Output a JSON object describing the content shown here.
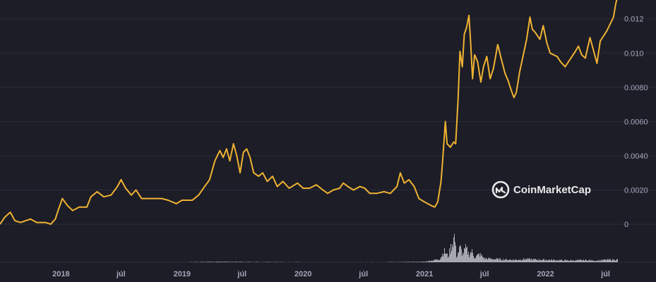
{
  "chart_data": {
    "type": "line",
    "colors": {
      "price_line": "#f0b232",
      "volume": "#e6e8ef",
      "grid": "#2b2d3a",
      "tick_text": "#a1a7bb",
      "background": "#1c1d26"
    },
    "y_ticks": [
      {
        "value": 0,
        "label": "0"
      },
      {
        "value": 0.002,
        "label": "0.0020"
      },
      {
        "value": 0.004,
        "label": "0.0040"
      },
      {
        "value": 0.006,
        "label": "0.0060"
      },
      {
        "value": 0.008,
        "label": "0.0080"
      },
      {
        "value": 0.01,
        "label": "0.010"
      },
      {
        "value": 0.012,
        "label": "0.012"
      }
    ],
    "ylim": [
      0,
      0.0131
    ],
    "xlim": [
      "2017-07-01",
      "2022-08-05"
    ],
    "x_ticks": [
      {
        "date": "2018-01-01",
        "label": "2018"
      },
      {
        "date": "2018-07-01",
        "label": "júl"
      },
      {
        "date": "2019-01-01",
        "label": "2019"
      },
      {
        "date": "2019-07-01",
        "label": "júl"
      },
      {
        "date": "2020-01-01",
        "label": "2020"
      },
      {
        "date": "2020-07-01",
        "label": "júl"
      },
      {
        "date": "2021-01-01",
        "label": "2021"
      },
      {
        "date": "2021-07-01",
        "label": "júl"
      },
      {
        "date": "2022-01-01",
        "label": "2022"
      },
      {
        "date": "2022-07-01",
        "label": "júl"
      }
    ],
    "series": [
      {
        "points": [
          [
            "2017-07-01",
            0.0
          ],
          [
            "2017-07-15",
            0.0004
          ],
          [
            "2017-08-01",
            0.0007
          ],
          [
            "2017-08-15",
            0.0002
          ],
          [
            "2017-09-01",
            0.0001
          ],
          [
            "2017-10-01",
            0.0003
          ],
          [
            "2017-10-20",
            0.0001
          ],
          [
            "2017-11-15",
            0.0001
          ],
          [
            "2017-12-01",
            0.0
          ],
          [
            "2017-12-15",
            0.0003
          ],
          [
            "2017-12-25",
            0.0009
          ],
          [
            "2018-01-05",
            0.0015
          ],
          [
            "2018-01-20",
            0.0011
          ],
          [
            "2018-02-05",
            0.0008
          ],
          [
            "2018-02-25",
            0.001
          ],
          [
            "2018-03-20",
            0.001
          ],
          [
            "2018-04-01",
            0.0016
          ],
          [
            "2018-04-20",
            0.0019
          ],
          [
            "2018-05-10",
            0.0016
          ],
          [
            "2018-06-01",
            0.0017
          ],
          [
            "2018-06-20",
            0.0022
          ],
          [
            "2018-07-01",
            0.0026
          ],
          [
            "2018-07-15",
            0.0021
          ],
          [
            "2018-08-01",
            0.0017
          ],
          [
            "2018-08-15",
            0.002
          ],
          [
            "2018-09-01",
            0.0015
          ],
          [
            "2018-10-01",
            0.0015
          ],
          [
            "2018-11-01",
            0.0015
          ],
          [
            "2018-11-20",
            0.0014
          ],
          [
            "2018-12-15",
            0.0012
          ],
          [
            "2019-01-01",
            0.0014
          ],
          [
            "2019-02-01",
            0.0014
          ],
          [
            "2019-02-20",
            0.0017
          ],
          [
            "2019-03-10",
            0.0022
          ],
          [
            "2019-03-25",
            0.0026
          ],
          [
            "2019-04-10",
            0.0037
          ],
          [
            "2019-04-25",
            0.0043
          ],
          [
            "2019-05-05",
            0.0039
          ],
          [
            "2019-05-15",
            0.0044
          ],
          [
            "2019-05-25",
            0.0037
          ],
          [
            "2019-06-05",
            0.0047
          ],
          [
            "2019-06-15",
            0.004
          ],
          [
            "2019-06-25",
            0.003
          ],
          [
            "2019-07-05",
            0.0042
          ],
          [
            "2019-07-15",
            0.0044
          ],
          [
            "2019-07-25",
            0.0039
          ],
          [
            "2019-08-05",
            0.003
          ],
          [
            "2019-08-20",
            0.0028
          ],
          [
            "2019-09-01",
            0.003
          ],
          [
            "2019-09-15",
            0.0025
          ],
          [
            "2019-10-01",
            0.0028
          ],
          [
            "2019-10-15",
            0.0022
          ],
          [
            "2019-11-01",
            0.0025
          ],
          [
            "2019-11-20",
            0.0021
          ],
          [
            "2019-12-15",
            0.0024
          ],
          [
            "2020-01-01",
            0.0021
          ],
          [
            "2020-01-20",
            0.0021
          ],
          [
            "2020-02-10",
            0.0023
          ],
          [
            "2020-03-01",
            0.002
          ],
          [
            "2020-03-15",
            0.0018
          ],
          [
            "2020-04-01",
            0.002
          ],
          [
            "2020-04-20",
            0.0021
          ],
          [
            "2020-05-01",
            0.0024
          ],
          [
            "2020-05-15",
            0.0022
          ],
          [
            "2020-06-01",
            0.002
          ],
          [
            "2020-06-20",
            0.0022
          ],
          [
            "2020-07-05",
            0.0021
          ],
          [
            "2020-07-20",
            0.0018
          ],
          [
            "2020-08-10",
            0.0018
          ],
          [
            "2020-09-01",
            0.0019
          ],
          [
            "2020-09-20",
            0.0018
          ],
          [
            "2020-10-10",
            0.0022
          ],
          [
            "2020-10-20",
            0.003
          ],
          [
            "2020-11-01",
            0.0024
          ],
          [
            "2020-11-15",
            0.0026
          ],
          [
            "2020-12-01",
            0.0022
          ],
          [
            "2020-12-15",
            0.0015
          ],
          [
            "2021-01-01",
            0.0013
          ],
          [
            "2021-01-20",
            0.0011
          ],
          [
            "2021-02-01",
            0.001
          ],
          [
            "2021-02-10",
            0.0013
          ],
          [
            "2021-02-20",
            0.0025
          ],
          [
            "2021-02-25",
            0.0038
          ],
          [
            "2021-03-05",
            0.006
          ],
          [
            "2021-03-10",
            0.0047
          ],
          [
            "2021-03-20",
            0.0045
          ],
          [
            "2021-03-30",
            0.0048
          ],
          [
            "2021-04-05",
            0.0047
          ],
          [
            "2021-04-12",
            0.0072
          ],
          [
            "2021-04-18",
            0.0101
          ],
          [
            "2021-04-25",
            0.0092
          ],
          [
            "2021-05-01",
            0.0111
          ],
          [
            "2021-05-08",
            0.0115
          ],
          [
            "2021-05-15",
            0.0122
          ],
          [
            "2021-05-20",
            0.0107
          ],
          [
            "2021-05-26",
            0.0085
          ],
          [
            "2021-06-01",
            0.0099
          ],
          [
            "2021-06-10",
            0.0095
          ],
          [
            "2021-06-20",
            0.0083
          ],
          [
            "2021-06-28",
            0.0092
          ],
          [
            "2021-07-08",
            0.0098
          ],
          [
            "2021-07-18",
            0.0085
          ],
          [
            "2021-07-28",
            0.0091
          ],
          [
            "2021-08-10",
            0.0105
          ],
          [
            "2021-08-20",
            0.0097
          ],
          [
            "2021-09-01",
            0.0088
          ],
          [
            "2021-09-10",
            0.0084
          ],
          [
            "2021-09-20",
            0.0078
          ],
          [
            "2021-09-28",
            0.0074
          ],
          [
            "2021-10-05",
            0.0077
          ],
          [
            "2021-10-15",
            0.0089
          ],
          [
            "2021-10-25",
            0.0098
          ],
          [
            "2021-11-05",
            0.0108
          ],
          [
            "2021-11-15",
            0.0121
          ],
          [
            "2021-11-22",
            0.0114
          ],
          [
            "2021-12-01",
            0.0112
          ],
          [
            "2021-12-15",
            0.0108
          ],
          [
            "2021-12-25",
            0.0116
          ],
          [
            "2022-01-05",
            0.0106
          ],
          [
            "2022-01-15",
            0.01
          ],
          [
            "2022-01-25",
            0.0099
          ],
          [
            "2022-02-05",
            0.0098
          ],
          [
            "2022-02-15",
            0.0095
          ],
          [
            "2022-03-01",
            0.0092
          ],
          [
            "2022-03-15",
            0.0096
          ],
          [
            "2022-04-01",
            0.0101
          ],
          [
            "2022-04-10",
            0.0104
          ],
          [
            "2022-04-20",
            0.0099
          ],
          [
            "2022-05-01",
            0.0097
          ],
          [
            "2022-05-15",
            0.0109
          ],
          [
            "2022-05-25",
            0.0102
          ],
          [
            "2022-06-05",
            0.0094
          ],
          [
            "2022-06-15",
            0.0107
          ],
          [
            "2022-06-25",
            0.011
          ],
          [
            "2022-07-05",
            0.0113
          ],
          [
            "2022-07-15",
            0.0117
          ],
          [
            "2022-07-25",
            0.0121
          ],
          [
            "2022-08-01",
            0.0129
          ],
          [
            "2022-08-05",
            0.0132
          ]
        ]
      }
    ],
    "volume_points": [
      [
        "2017-07-01",
        0.002
      ],
      [
        "2018-01-01",
        0.005
      ],
      [
        "2018-07-01",
        0.006
      ],
      [
        "2019-01-01",
        0.004
      ],
      [
        "2019-05-01",
        0.02
      ],
      [
        "2019-07-01",
        0.012
      ],
      [
        "2020-01-01",
        0.006
      ],
      [
        "2020-07-01",
        0.006
      ],
      [
        "2020-11-01",
        0.01
      ],
      [
        "2021-01-01",
        0.02
      ],
      [
        "2021-02-15",
        0.12
      ],
      [
        "2021-02-28",
        0.42
      ],
      [
        "2021-03-06",
        0.33
      ],
      [
        "2021-03-12",
        0.22
      ],
      [
        "2021-04-01",
        1.0
      ],
      [
        "2021-04-06",
        0.22
      ],
      [
        "2021-04-18",
        0.55
      ],
      [
        "2021-04-25",
        0.3
      ],
      [
        "2021-05-05",
        0.52
      ],
      [
        "2021-05-15",
        0.28
      ],
      [
        "2021-05-22",
        0.42
      ],
      [
        "2021-06-01",
        0.18
      ],
      [
        "2021-06-15",
        0.3
      ],
      [
        "2021-07-01",
        0.14
      ],
      [
        "2021-08-01",
        0.12
      ],
      [
        "2021-09-01",
        0.1
      ],
      [
        "2021-10-01",
        0.09
      ],
      [
        "2021-11-01",
        0.12
      ],
      [
        "2021-12-01",
        0.1
      ],
      [
        "2022-01-01",
        0.09
      ],
      [
        "2022-02-01",
        0.08
      ],
      [
        "2022-03-01",
        0.07
      ],
      [
        "2022-04-01",
        0.07
      ],
      [
        "2022-05-01",
        0.08
      ],
      [
        "2022-06-01",
        0.06
      ],
      [
        "2022-07-01",
        0.09
      ],
      [
        "2022-08-05",
        0.1
      ]
    ]
  },
  "watermark": {
    "brand": "CoinMarketCap",
    "icon": "coinmarketcap-logo-icon"
  }
}
